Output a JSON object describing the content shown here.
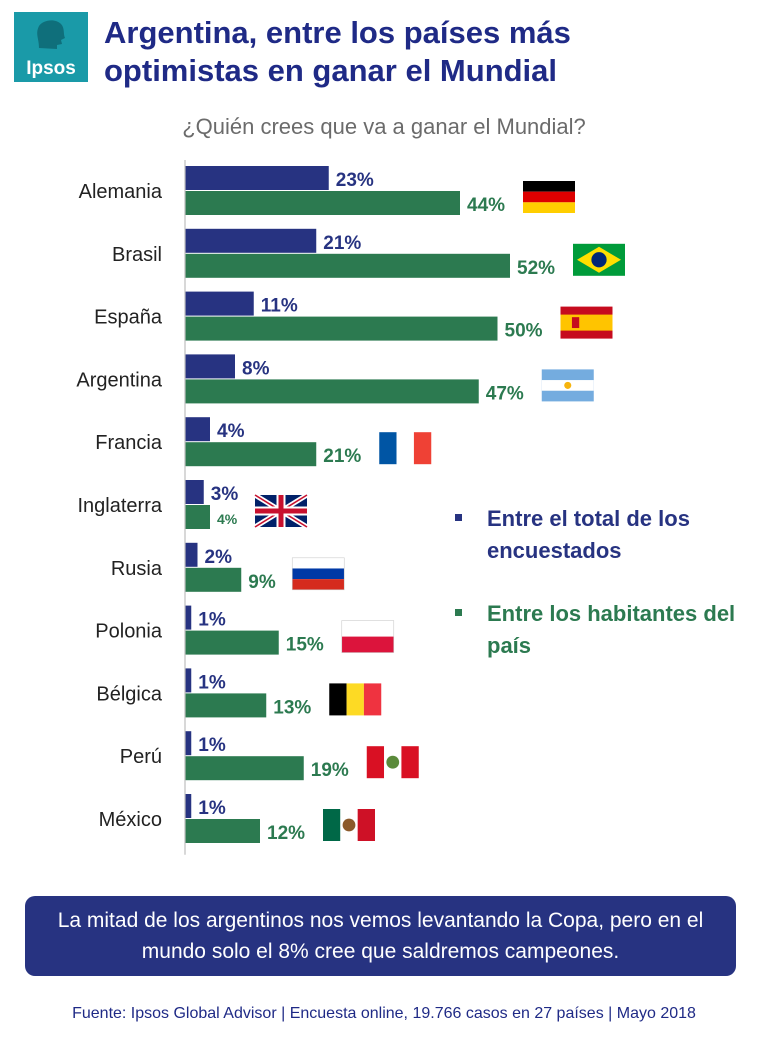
{
  "brand": "Ipsos",
  "title_line1": "Argentina, entre los países más",
  "title_line2": "optimistas en ganar el Mundial",
  "subtitle": "¿Quién crees que va a ganar el Mundial?",
  "colors": {
    "total": "#273381",
    "country": "#2c7a50",
    "brand": "#1a9aa8",
    "title": "#1f2a86"
  },
  "chart_data": {
    "type": "bar",
    "orientation": "horizontal",
    "categories": [
      "Alemania",
      "Brasil",
      "España",
      "Argentina",
      "Francia",
      "Inglaterra",
      "Rusia",
      "Polonia",
      "Bélgica",
      "Perú",
      "México"
    ],
    "series": [
      {
        "name": "Entre el total de los encuestados",
        "values": [
          23,
          21,
          11,
          8,
          4,
          3,
          2,
          1,
          1,
          1,
          1
        ],
        "labels": [
          "23%",
          "21%",
          "11%",
          "8%",
          "4%",
          "3%",
          "2%",
          "1%",
          "1%",
          "1%",
          "1%"
        ]
      },
      {
        "name": "Entre los habitantes del país",
        "values": [
          44,
          52,
          50,
          47,
          21,
          4,
          9,
          15,
          13,
          19,
          12
        ],
        "labels": [
          "44%",
          "52%",
          "50%",
          "47%",
          "21%",
          "4%",
          "9%",
          "15%",
          "13%",
          "19%",
          "12%"
        ]
      }
    ],
    "flags": [
      "germany-flag",
      "brazil-flag",
      "spain-flag",
      "argentina-flag",
      "france-flag",
      "uk-flag",
      "russia-flag",
      "poland-flag",
      "belgium-flag",
      "peru-flag",
      "mexico-flag"
    ],
    "xlim": [
      0,
      55
    ],
    "legend_position": "right"
  },
  "legend": {
    "total": "Entre el total de los encuestados",
    "country": "Entre los habitantes del país"
  },
  "callout": "La mitad de los argentinos nos vemos levantando la Copa, pero en el mundo solo el 8% cree que saldremos campeones.",
  "source": "Fuente: Ipsos Global Advisor | Encuesta online, 19.766 casos en 27 países | Mayo 2018"
}
